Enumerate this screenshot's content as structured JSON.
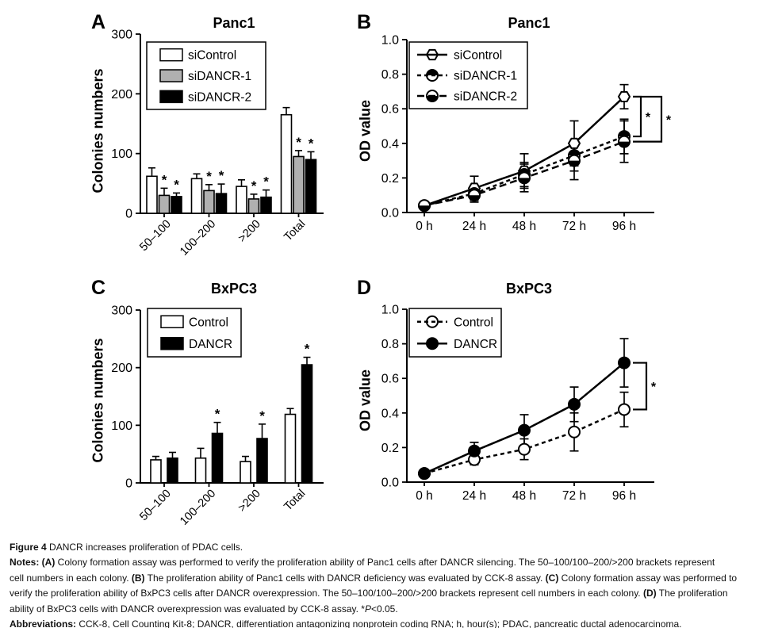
{
  "colors": {
    "axis": "#000000",
    "significance_asterisk": "#4d4d4d",
    "bar_gray": "#b0b0b0",
    "bar_black": "#000000",
    "bar_white": "#ffffff"
  },
  "chart_data": [
    {
      "panel": "A",
      "type": "bar",
      "title": "Panc1",
      "ylabel": "Colonies numbers",
      "ylim": [
        0,
        300
      ],
      "yticks": [
        "0",
        "100",
        "200",
        "300"
      ],
      "categories": [
        "50–100",
        "100–200",
        ">200",
        "Total"
      ],
      "legend_position": "top-left",
      "grid": false,
      "sig_label": "*",
      "series": [
        {
          "name": "siControl",
          "fill": "#ffffff",
          "values": [
            62,
            58,
            45,
            165
          ],
          "errors": [
            14,
            8,
            11,
            12
          ],
          "sig": [
            false,
            false,
            false,
            false
          ]
        },
        {
          "name": "siDANCR-1",
          "fill": "#b0b0b0",
          "values": [
            30,
            38,
            24,
            95
          ],
          "errors": [
            12,
            10,
            8,
            10
          ],
          "sig": [
            true,
            true,
            true,
            true
          ]
        },
        {
          "name": "siDANCR-2",
          "fill": "#000000",
          "values": [
            28,
            33,
            27,
            90
          ],
          "errors": [
            6,
            16,
            12,
            13
          ],
          "sig": [
            true,
            true,
            true,
            true
          ]
        }
      ]
    },
    {
      "panel": "B",
      "type": "line",
      "title": "Panc1",
      "ylabel": "OD value",
      "ylim": [
        0,
        1.0
      ],
      "yticks": [
        "0.0",
        "0.2",
        "0.4",
        "0.6",
        "0.8",
        "1.0"
      ],
      "x_labels": [
        "0 h",
        "24 h",
        "48 h",
        "72 h",
        "96 h"
      ],
      "legend_position": "top-left",
      "grid": false,
      "series": [
        {
          "name": "siControl",
          "marker": "hexagon-open",
          "line_style": "solid",
          "values": [
            0.04,
            0.14,
            0.24,
            0.4,
            0.67
          ],
          "errors": [
            0.01,
            0.07,
            0.1,
            0.13,
            0.07
          ]
        },
        {
          "name": "siDANCR-1",
          "marker": "circle-half-top",
          "line_style": "dashed",
          "values": [
            0.04,
            0.11,
            0.22,
            0.33,
            0.44
          ],
          "errors": [
            0.01,
            0.04,
            0.07,
            0.09,
            0.1
          ]
        },
        {
          "name": "siDANCR-2",
          "marker": "circle-half-bottom",
          "line_style": "dashed-long",
          "values": [
            0.04,
            0.1,
            0.2,
            0.3,
            0.41
          ],
          "errors": [
            0.01,
            0.04,
            0.08,
            0.11,
            0.12
          ]
        }
      ],
      "significance": [
        {
          "between": [
            0,
            1
          ],
          "label": "*"
        },
        {
          "between": [
            0,
            2
          ],
          "label": "*"
        }
      ]
    },
    {
      "panel": "C",
      "type": "bar",
      "title": "BxPC3",
      "ylabel": "Colonies numbers",
      "ylim": [
        0,
        300
      ],
      "yticks": [
        "0",
        "100",
        "200",
        "300"
      ],
      "categories": [
        "50–100",
        "100–200",
        ">200",
        "Total"
      ],
      "legend_position": "top-left",
      "grid": false,
      "sig_label": "*",
      "series": [
        {
          "name": "Control",
          "fill": "#ffffff",
          "values": [
            40,
            43,
            37,
            119
          ],
          "errors": [
            6,
            17,
            9,
            10
          ],
          "sig": [
            false,
            false,
            false,
            false
          ]
        },
        {
          "name": "DANCR",
          "fill": "#000000",
          "values": [
            43,
            86,
            77,
            205
          ],
          "errors": [
            10,
            19,
            25,
            13
          ],
          "sig": [
            false,
            true,
            true,
            true
          ]
        }
      ]
    },
    {
      "panel": "D",
      "type": "line",
      "title": "BxPC3",
      "ylabel": "OD value",
      "ylim": [
        0,
        1.0
      ],
      "yticks": [
        "0.0",
        "0.2",
        "0.4",
        "0.6",
        "0.8",
        "1.0"
      ],
      "x_labels": [
        "0 h",
        "24 h",
        "48 h",
        "72 h",
        "96 h"
      ],
      "legend_position": "top-left",
      "grid": false,
      "series": [
        {
          "name": "Control",
          "marker": "circle-open",
          "line_style": "dashed",
          "values": [
            0.05,
            0.13,
            0.19,
            0.29,
            0.42
          ],
          "errors": [
            0.01,
            0.03,
            0.06,
            0.11,
            0.1
          ]
        },
        {
          "name": "DANCR",
          "marker": "circle-filled",
          "line_style": "solid",
          "values": [
            0.05,
            0.18,
            0.3,
            0.45,
            0.69
          ],
          "errors": [
            0.01,
            0.05,
            0.09,
            0.1,
            0.14
          ]
        }
      ],
      "significance": [
        {
          "between": [
            1,
            0
          ],
          "label": "*"
        }
      ]
    }
  ],
  "figure_caption": {
    "lines": [
      {
        "runs": [
          {
            "t": "Figure 4",
            "b": true
          },
          {
            "t": " DANCR increases proliferation of PDAC cells.",
            "b": false
          }
        ]
      },
      {
        "runs": [
          {
            "t": "Notes: (A)",
            "b": true
          },
          {
            "t": " Colony formation assay was performed to verify the proliferation ability of Panc1 cells after DANCR silencing. The 50–100/100–200/>200 brackets represent",
            "b": false
          }
        ]
      },
      {
        "runs": [
          {
            "t": "cell numbers in each colony. ",
            "b": false
          },
          {
            "t": "(B)",
            "b": true
          },
          {
            "t": " The proliferation ability of Panc1 cells with DANCR deficiency was evaluated by CCK-8 assay. ",
            "b": false
          },
          {
            "t": "(C)",
            "b": true
          },
          {
            "t": " Colony formation assay was performed to",
            "b": false
          }
        ]
      },
      {
        "runs": [
          {
            "t": "verify the proliferation ability of BxPC3 cells after DANCR overexpression. The 50–100/100–200/>200 brackets represent cell numbers in each colony. ",
            "b": false
          },
          {
            "t": "(D)",
            "b": true
          },
          {
            "t": " The proliferation",
            "b": false
          }
        ]
      },
      {
        "runs": [
          {
            "t": "ability of BxPC3 cells with DANCR overexpression was evaluated by CCK-8 assay. *",
            "b": false
          },
          {
            "t": "P",
            "b": false,
            "i": true
          },
          {
            "t": "<0.05.",
            "b": false
          }
        ]
      },
      {
        "runs": [
          {
            "t": "Abbreviations:",
            "b": true
          },
          {
            "t": " CCK-8, Cell Counting Kit-8; DANCR, differentiation antagonizing nonprotein coding RNA; h, hour(s); PDAC, pancreatic ductal adenocarcinoma.",
            "b": false
          }
        ]
      }
    ]
  }
}
